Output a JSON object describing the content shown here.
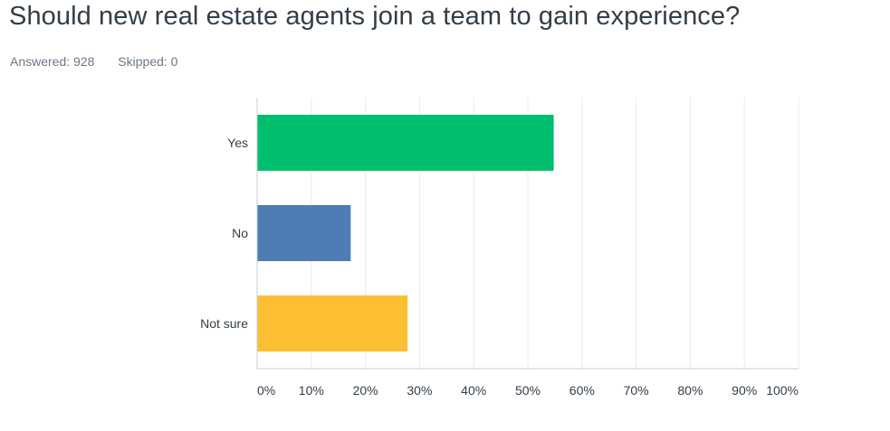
{
  "question": {
    "title": "Should new real estate agents join a team to gain experience?",
    "answered_label": "Answered: 928",
    "skipped_label": "Skipped: 0"
  },
  "chart_data": {
    "type": "bar",
    "orientation": "horizontal",
    "categories": [
      "Yes",
      "No",
      "Not sure"
    ],
    "values": [
      54.7,
      17.2,
      27.7
    ],
    "colors": [
      "#00bf6f",
      "#507cb6",
      "#fcbe32"
    ],
    "xlim": [
      0,
      100
    ],
    "xticks": [
      "0%",
      "10%",
      "20%",
      "30%",
      "40%",
      "50%",
      "60%",
      "70%",
      "80%",
      "90%",
      "100%"
    ],
    "grid": true
  }
}
